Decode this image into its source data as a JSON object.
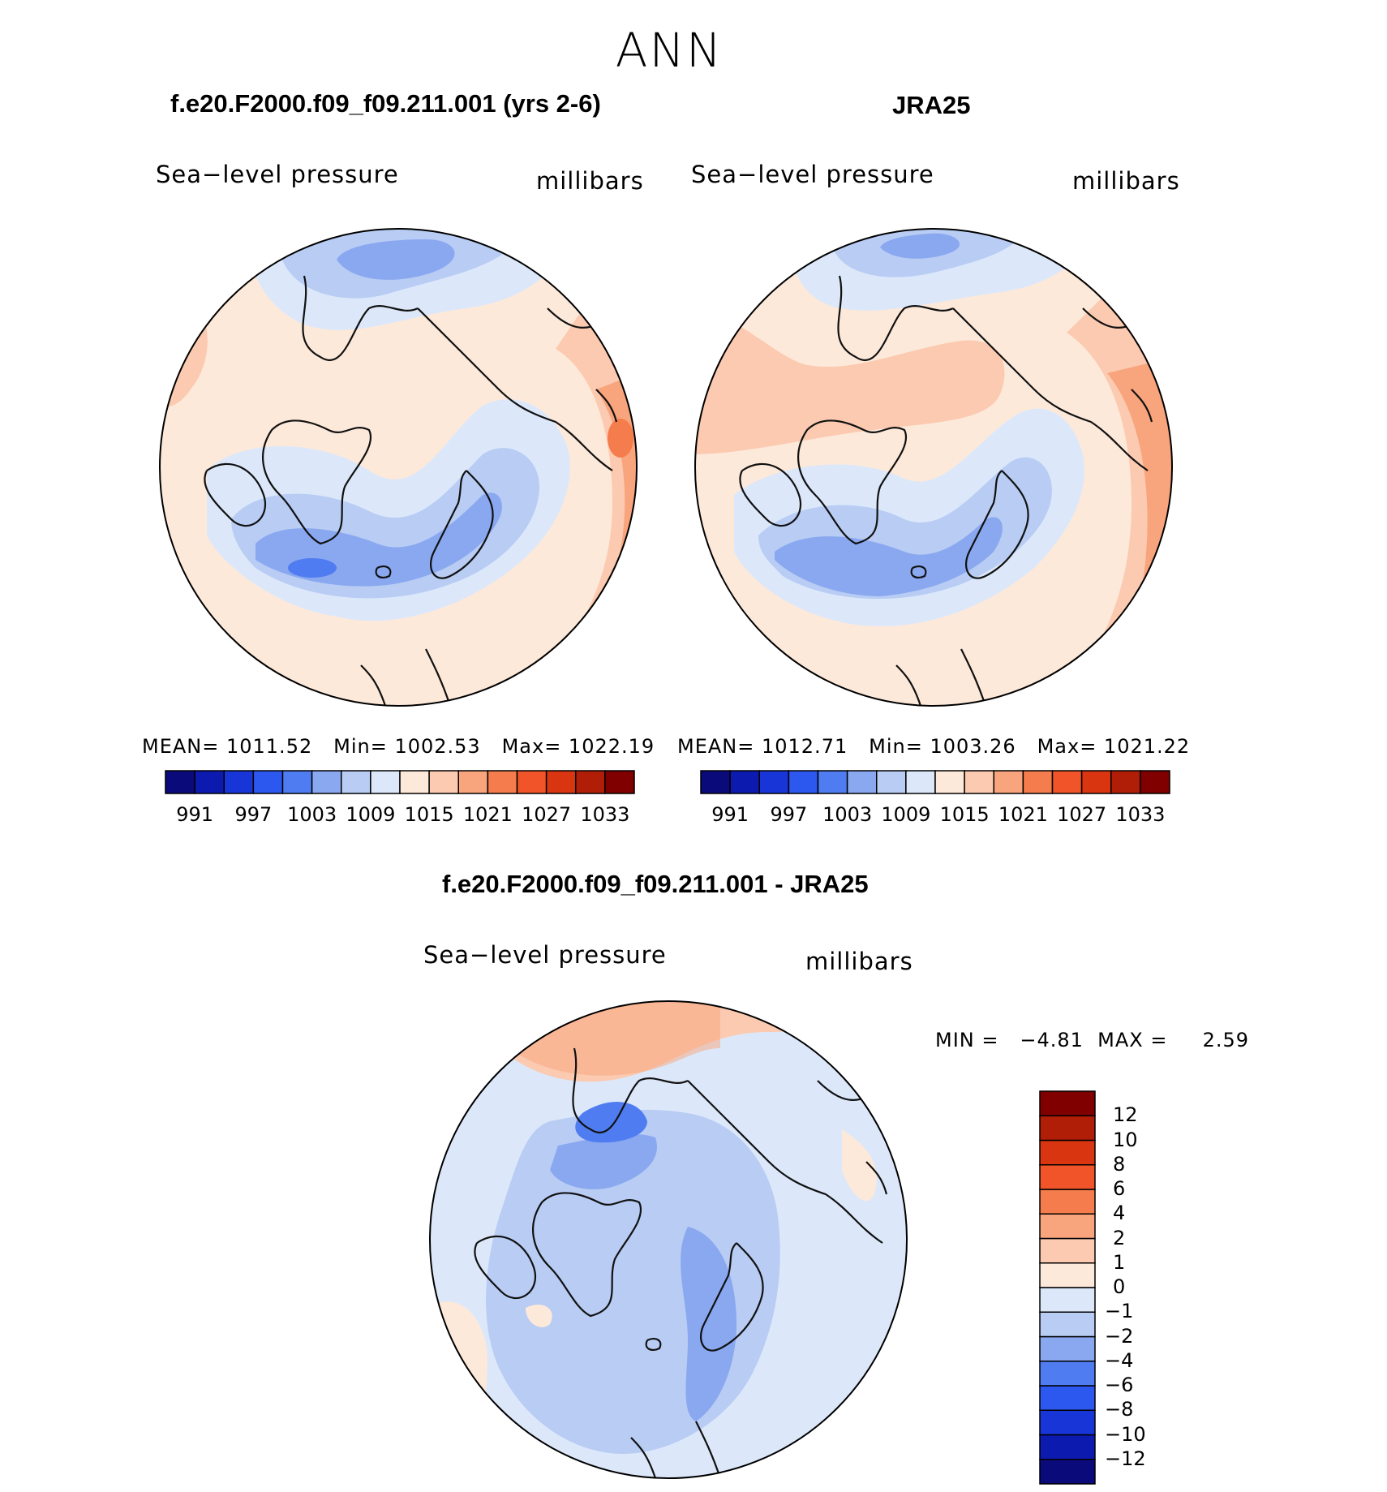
{
  "page_title": "ANN",
  "panels": [
    {
      "id": "model",
      "heading": "f.e20.F2000.f09_f09.211.001 (yrs 2-6)",
      "variable": "Sea−level pressure",
      "units": "millibars",
      "stats": "MEAN= 1011.52   Min= 1002.53   Max= 1022.19"
    },
    {
      "id": "obs",
      "heading": "JRA25",
      "variable": "Sea−level pressure",
      "units": "millibars",
      "stats": "MEAN= 1012.71   Min= 1003.26   Max= 1021.22"
    },
    {
      "id": "diff",
      "heading": "f.e20.F2000.f09_f09.211.001 - JRA25",
      "variable": "Sea−level pressure",
      "units": "millibars",
      "stats": "MIN =   −4.81  MAX =     2.59"
    }
  ],
  "colorbars": {
    "absolute": {
      "colors": [
        "#0a0a7a",
        "#0c1ab0",
        "#1836d8",
        "#2c58f0",
        "#4f7cf0",
        "#8aa8f0",
        "#b8ccf4",
        "#dce8fa",
        "#fde9da",
        "#fbcab0",
        "#f8a47c",
        "#f57c4c",
        "#f05428",
        "#d83510",
        "#b01e08",
        "#800000"
      ],
      "ticks": [
        "991",
        "997",
        "1003",
        "1009",
        "1015",
        "1021",
        "1027",
        "1033"
      ]
    },
    "difference": {
      "colors": [
        "#0a0a7a",
        "#0c1ab0",
        "#1836d8",
        "#2c58f0",
        "#4f7cf0",
        "#8aa8f0",
        "#b8ccf4",
        "#dce8fa",
        "#fde9da",
        "#fbcab0",
        "#f8a47c",
        "#f57c4c",
        "#f05428",
        "#d83510",
        "#b01e08",
        "#800000"
      ],
      "ticks": [
        "−12",
        "−10",
        "−8",
        "−6",
        "−4",
        "−2",
        "−1",
        "0",
        "1",
        "2",
        "4",
        "6",
        "8",
        "10",
        "12"
      ]
    }
  }
}
